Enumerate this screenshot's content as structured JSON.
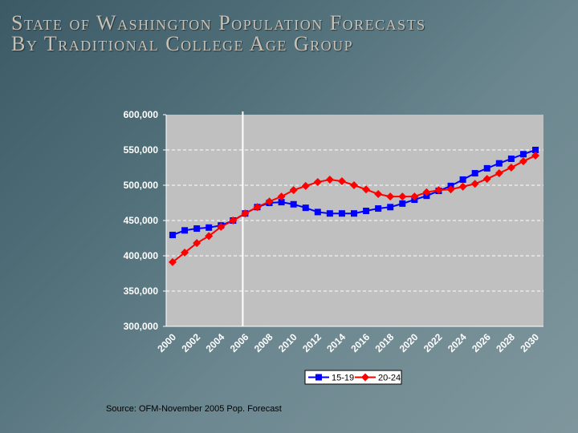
{
  "title_line1": "State of Washington Population Forecasts",
  "title_line2": "By Traditional College Age Group",
  "source": "Source:  OFM-November 2005 Pop. Forecast",
  "chart_data": {
    "type": "line",
    "ylim": [
      300000,
      600000
    ],
    "yticks": [
      "600,000",
      "550,000",
      "500,000",
      "450,000",
      "400,000",
      "350,000",
      "300,000"
    ],
    "xtick_labels": [
      "2000",
      "2002",
      "2004",
      "2006",
      "2008",
      "2010",
      "2012",
      "2014",
      "2016",
      "2018",
      "2020",
      "2022",
      "2024",
      "2026",
      "2028",
      "2030"
    ],
    "x": [
      2000,
      2001,
      2002,
      2003,
      2004,
      2005,
      2006,
      2007,
      2008,
      2009,
      2010,
      2011,
      2012,
      2013,
      2014,
      2015,
      2016,
      2017,
      2018,
      2019,
      2020,
      2021,
      2022,
      2023,
      2024,
      2025,
      2026,
      2027,
      2028,
      2029,
      2030
    ],
    "grid": true,
    "legend": "bottom",
    "marker_line_year": 2006,
    "series": [
      {
        "name": "15-19",
        "color": "#0000ff",
        "marker": "square",
        "values": [
          429500,
          436000,
          438600,
          440000,
          443000,
          450000,
          460000,
          469000,
          475000,
          476000,
          473000,
          468000,
          462000,
          460000,
          460000,
          460000,
          463600,
          467000,
          469000,
          474000,
          479500,
          485000,
          492000,
          499000,
          508000,
          517000,
          524000,
          531000,
          537500,
          544000,
          550000
        ]
      },
      {
        "name": "20-24",
        "color": "#ff0000",
        "marker": "diamond",
        "values": [
          391000,
          404500,
          418000,
          428000,
          441000,
          450000,
          460000,
          469000,
          477000,
          484000,
          493000,
          499000,
          504500,
          508000,
          505700,
          500000,
          494000,
          487500,
          484000,
          484000,
          484000,
          490000,
          493000,
          494000,
          498000,
          502000,
          509000,
          517000,
          525000,
          534000,
          542000
        ]
      }
    ]
  }
}
